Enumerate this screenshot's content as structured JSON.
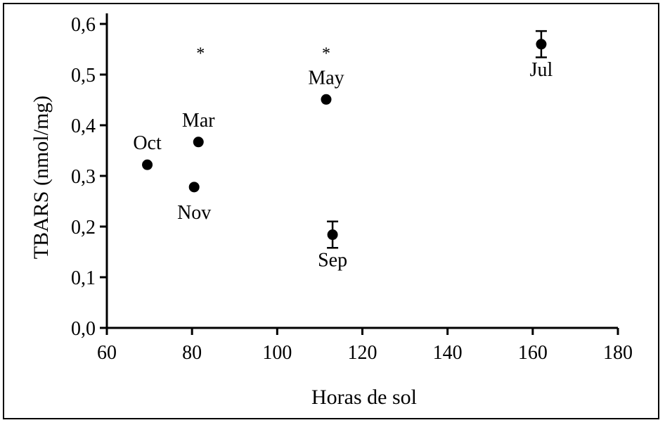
{
  "chart_data": {
    "type": "scatter",
    "xlabel": "Horas de sol",
    "ylabel": "TBARS (nmol/mg)",
    "xlim": [
      60,
      180
    ],
    "ylim": [
      0,
      0.6
    ],
    "x_ticks": [
      "60",
      "80",
      "100",
      "120",
      "140",
      "160",
      "180"
    ],
    "y_ticks": [
      "0,0",
      "0,1",
      "0,2",
      "0,3",
      "0,4",
      "0,5",
      "0,6"
    ],
    "points": [
      {
        "label": "Oct",
        "x": 69.5,
        "y": 0.322,
        "err": 0,
        "label_pos": "above"
      },
      {
        "label": "Nov",
        "x": 80.5,
        "y": 0.278,
        "err": 0,
        "label_pos": "below"
      },
      {
        "label": "Mar",
        "x": 81.5,
        "y": 0.367,
        "err": 0,
        "label_pos": "above"
      },
      {
        "label": "May",
        "x": 111.5,
        "y": 0.451,
        "err": 0,
        "label_pos": "above"
      },
      {
        "label": "Sep",
        "x": 113,
        "y": 0.184,
        "err": 0.026,
        "label_pos": "below"
      },
      {
        "label": "Jul",
        "x": 162,
        "y": 0.56,
        "err": 0.026,
        "label_pos": "below"
      }
    ],
    "annotations": [
      {
        "text": "*",
        "x": 82,
        "y": 0.545
      },
      {
        "text": "*",
        "x": 111.5,
        "y": 0.545
      }
    ]
  }
}
